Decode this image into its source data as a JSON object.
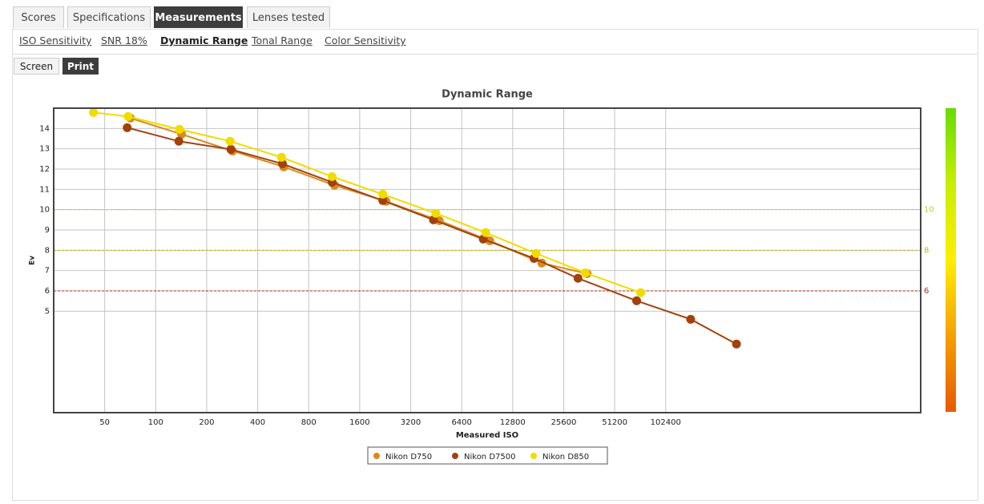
{
  "tabs": [
    "Scores",
    "Specifications",
    "Measurements",
    "Lenses tested"
  ],
  "subtabs": [
    "ISO Sensitivity",
    "SNR 18%",
    "Dynamic Range",
    "Tonal Range",
    "Color Sensitivity"
  ],
  "view_buttons": [
    "Screen",
    "Print"
  ],
  "chart_data": {
    "type": "line",
    "title": "Dynamic Range",
    "x_label": "Measured ISO",
    "y_label": "Ev",
    "log_x": true,
    "grid": true,
    "legend": "bottom",
    "xlim": [
      25,
      3276800
    ],
    "xticks": [
      50,
      100,
      200,
      400,
      800,
      1600,
      3200,
      6400,
      12800,
      25600,
      51200,
      102400
    ],
    "ylim": [
      0,
      15
    ],
    "yticks": [
      5,
      6,
      7,
      8,
      9,
      10,
      11,
      12,
      13,
      14
    ],
    "y2lim": [
      0,
      15
    ],
    "y2ticks": [
      6,
      8,
      10
    ],
    "y2tick_colors": [
      "#a0301c",
      "#c8b400",
      "#b8d030"
    ],
    "color_scale": [
      "#e85a00",
      "#f5a000",
      "#ffee00",
      "#c8ee00",
      "#66dd00"
    ],
    "series": [
      {
        "name": "Nikon D750",
        "color": "#d98a1c",
        "x": [
          70.9,
          142,
          284,
          570,
          1137,
          2290,
          4720,
          9370,
          19000,
          35200
        ],
        "values": [
          14.51,
          13.72,
          12.89,
          12.11,
          11.2,
          10.41,
          9.46,
          8.47,
          7.37,
          6.85
        ]
      },
      {
        "name": "Nikon D7500",
        "color": "#a3410c",
        "x": [
          67.9,
          137,
          278,
          560,
          1100,
          2190,
          4360,
          8580,
          17100,
          31100,
          69000,
          143800,
          268000
        ],
        "values": [
          14.04,
          13.37,
          12.97,
          12.26,
          11.35,
          10.45,
          9.5,
          8.55,
          7.6,
          6.62,
          5.51,
          4.6,
          3.38
        ]
      },
      {
        "name": "Nikon D850",
        "color": "#f0dc00",
        "x": [
          42.9,
          68.7,
          138,
          275,
          553,
          1100,
          2190,
          4500,
          8870,
          17600,
          34300,
          72900
        ],
        "values": [
          14.79,
          14.59,
          13.96,
          13.37,
          12.58,
          11.63,
          10.76,
          9.82,
          8.87,
          7.84,
          6.89,
          5.91
        ]
      }
    ]
  }
}
